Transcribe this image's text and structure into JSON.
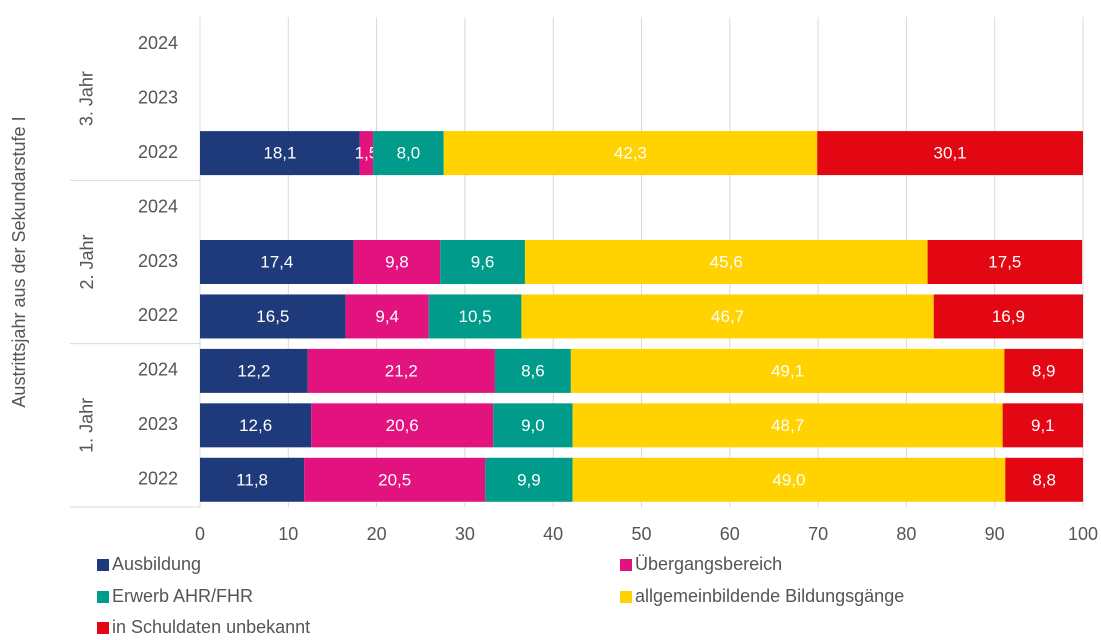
{
  "chart_data": {
    "type": "stacked-bar-horizontal",
    "y_axis_label": "Austrittsjahr aus der Sekundarstufe I",
    "groups": [
      "3. Jahr",
      "2. Jahr",
      "1. Jahr"
    ],
    "categories": [
      "2024",
      "2023",
      "2022",
      "2024",
      "2023",
      "2022",
      "2024",
      "2023",
      "2022"
    ],
    "series": [
      {
        "name": "Ausbildung",
        "color": "#1f3a7a",
        "values": [
          null,
          null,
          18.1,
          null,
          17.4,
          16.5,
          12.2,
          12.6,
          11.8
        ],
        "value_labels": [
          null,
          null,
          "18,1",
          null,
          "17,4",
          "16,5",
          "12,2",
          "12,6",
          "11,8"
        ]
      },
      {
        "name": "Übergangsbereich",
        "color": "#e2127f",
        "values": [
          null,
          null,
          1.5,
          null,
          9.8,
          9.4,
          21.2,
          20.6,
          20.5
        ],
        "value_labels": [
          null,
          null,
          "1,5",
          null,
          "9,8",
          "9,4",
          "21,2",
          "20,6",
          "20,5"
        ]
      },
      {
        "name": "Erwerb AHR/FHR",
        "color": "#009b8a",
        "values": [
          null,
          null,
          8.0,
          null,
          9.6,
          10.5,
          8.6,
          9.0,
          9.9
        ],
        "value_labels": [
          null,
          null,
          "8,0",
          null,
          "9,6",
          "10,5",
          "8,6",
          "9,0",
          "9,9"
        ]
      },
      {
        "name": "allgemeinbildende Bildungsgänge",
        "color": "#ffd200",
        "values": [
          null,
          null,
          42.3,
          null,
          45.6,
          46.7,
          49.1,
          48.7,
          49.0
        ],
        "value_labels": [
          null,
          null,
          "42,3",
          null,
          "45,6",
          "46,7",
          "49,1",
          "48,7",
          "49,0"
        ]
      },
      {
        "name": "in Schuldaten unbekannt",
        "color": "#e30613",
        "values": [
          null,
          null,
          30.1,
          null,
          17.5,
          16.9,
          8.9,
          9.1,
          8.8
        ],
        "value_labels": [
          null,
          null,
          "30,1",
          null,
          "17,5",
          "16,9",
          "8,9",
          "9,1",
          "8,8"
        ]
      }
    ],
    "xlim": [
      0,
      100
    ],
    "xticks": [
      0,
      10,
      20,
      30,
      40,
      50,
      60,
      70,
      80,
      90,
      100
    ],
    "grid": true
  }
}
